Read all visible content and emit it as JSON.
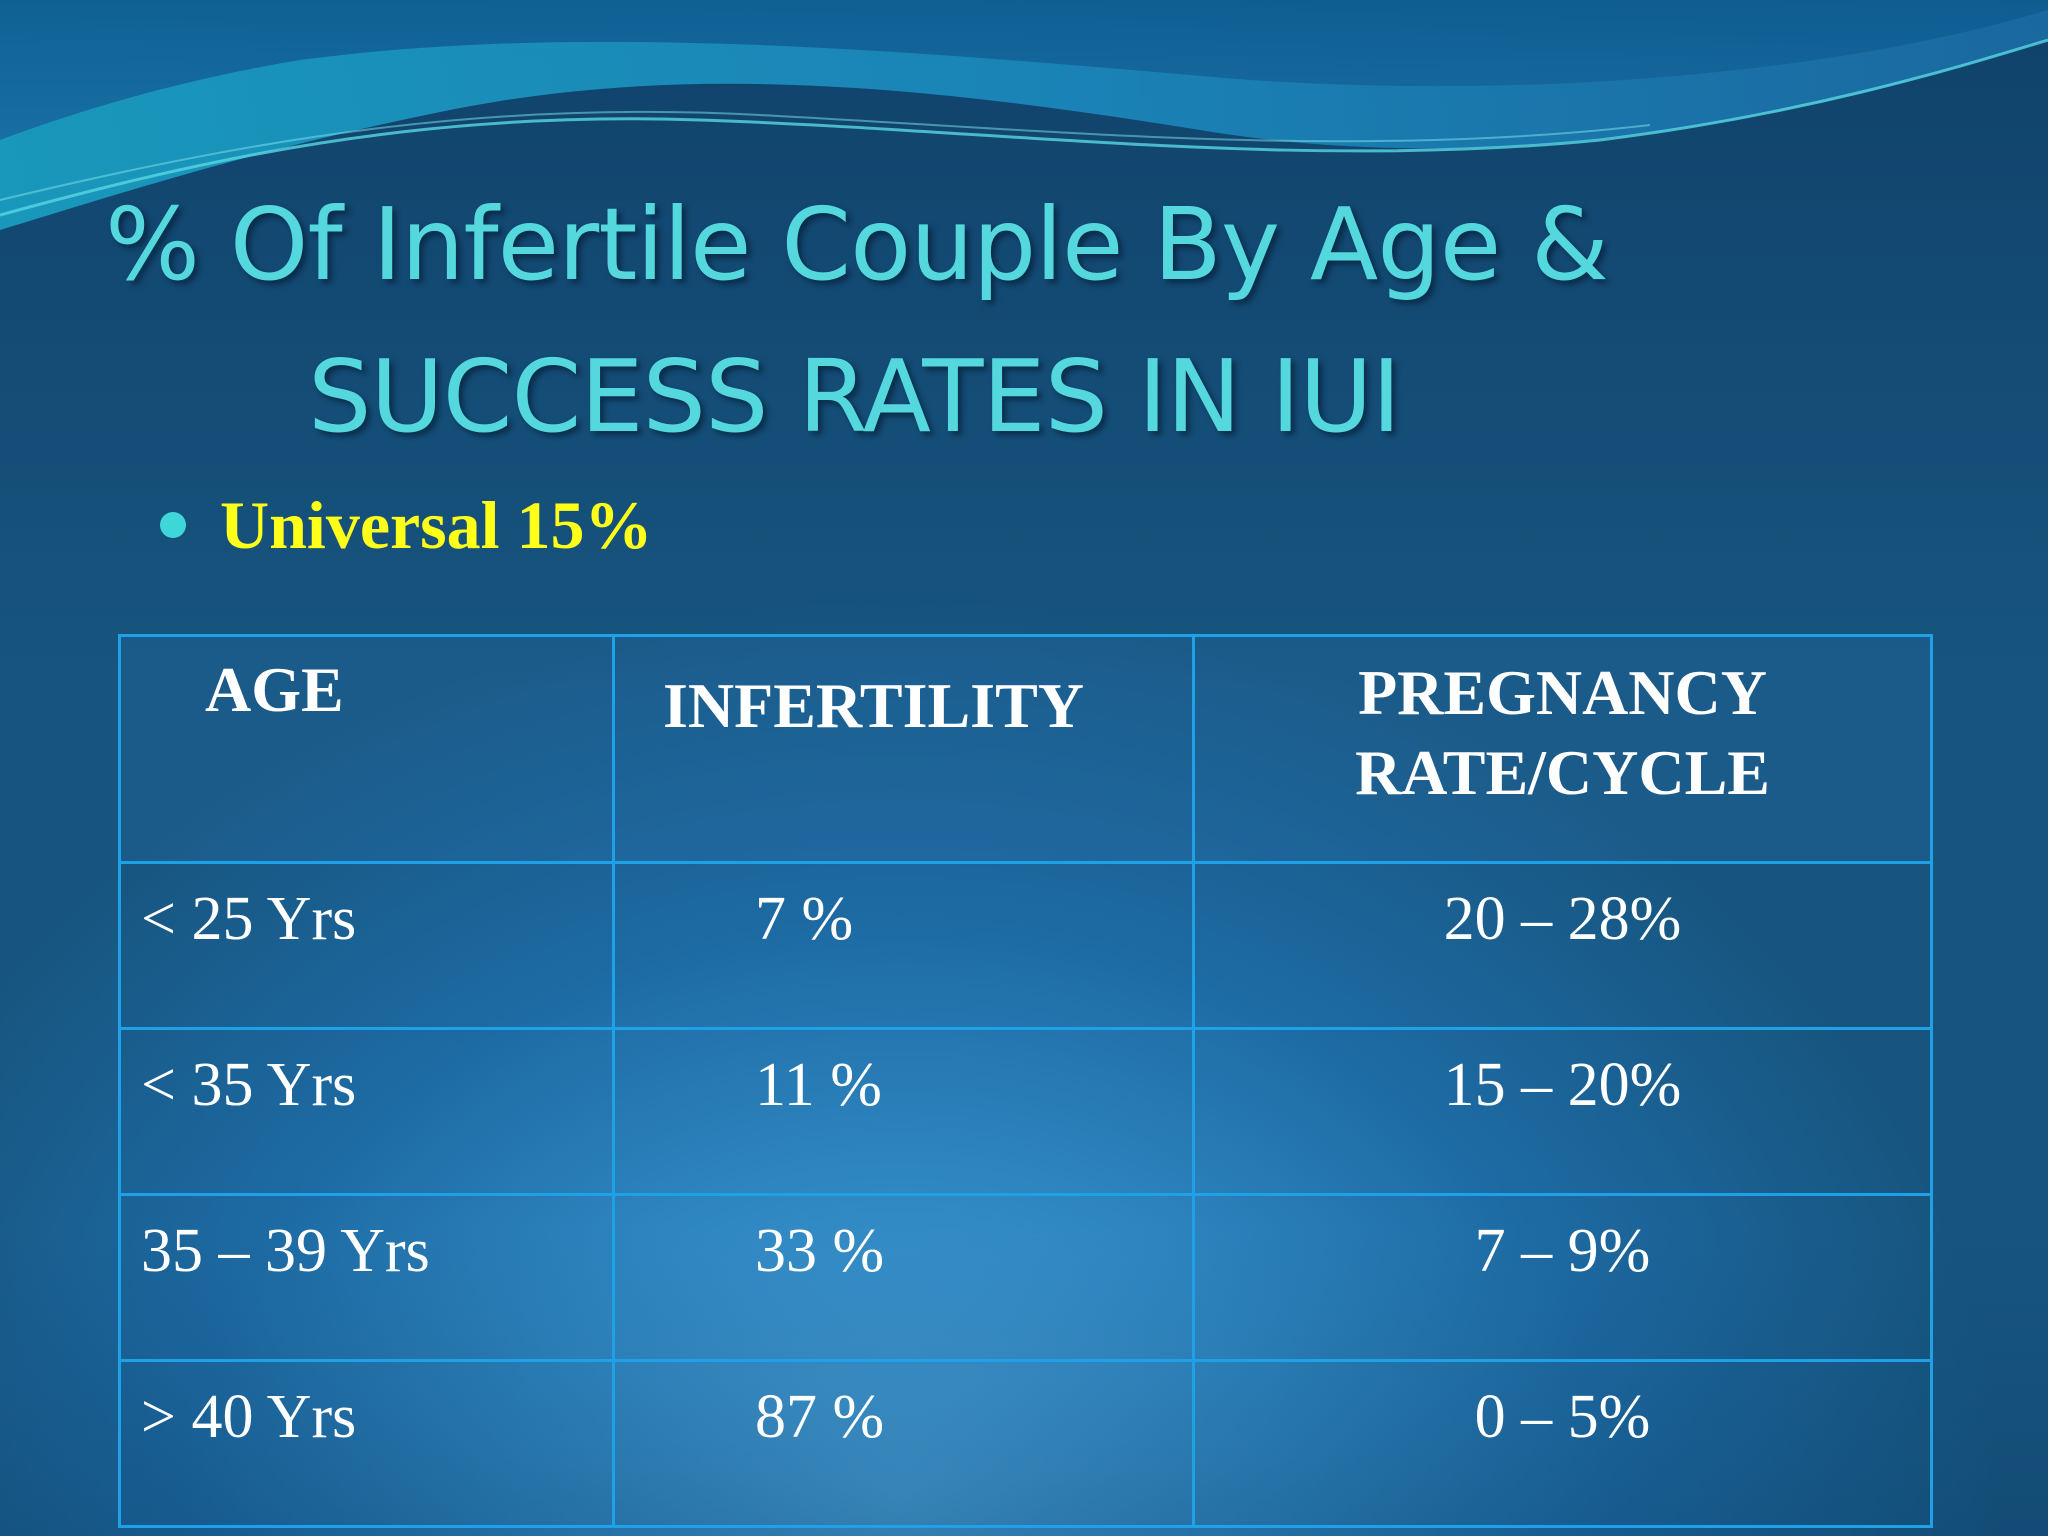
{
  "title": {
    "line1": "% Of Infertile Couple By Age &",
    "line2": "SUCCESS RATES IN IUI"
  },
  "bullet": {
    "text": "Universal 15%"
  },
  "table": {
    "headers": [
      "AGE",
      "INFERTILITY",
      "PREGNANCY RATE/CYCLE"
    ],
    "header_preg_line1": "PREGNANCY",
    "header_preg_line2": "RATE/CYCLE",
    "rows": [
      {
        "age": "< 25 Yrs",
        "infertility": "7 %",
        "pregnancy_rate": "20 – 28%"
      },
      {
        "age": "< 35 Yrs",
        "infertility": "11 %",
        "pregnancy_rate": "15 – 20%"
      },
      {
        "age": "35 – 39 Yrs",
        "infertility": "33 %",
        "pregnancy_rate": "7 – 9%"
      },
      {
        "age": "> 40 Yrs",
        "infertility": "87 %",
        "pregnancy_rate": "0 – 5%"
      }
    ]
  },
  "colors": {
    "title": "#55d8dd",
    "bullet_text": "#ffff1a",
    "bullet_dot": "#3fd6d9",
    "table_border": "#1ea1e6",
    "table_text": "#ffffff"
  }
}
